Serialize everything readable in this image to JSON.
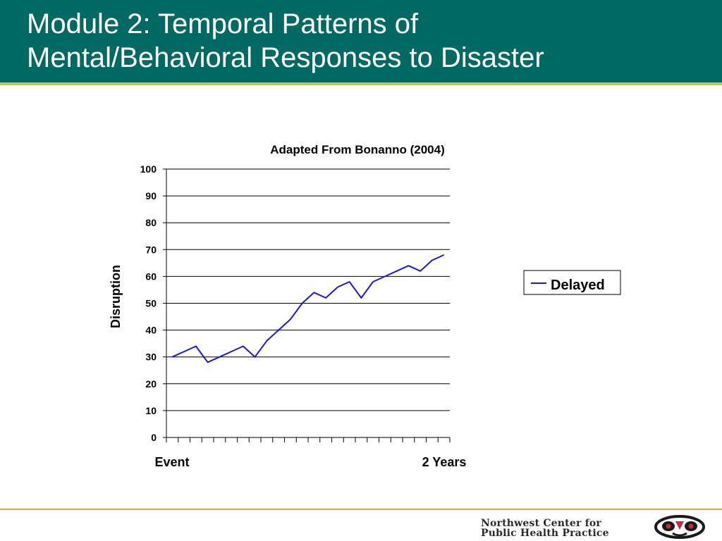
{
  "header": {
    "title_line1": "Module 2: Temporal Patterns of",
    "title_line2": "Mental/Behavioral Responses to Disaster"
  },
  "footer": {
    "logo_line1": "Northwest Center for",
    "logo_line2": "Public Health Practice"
  },
  "colors": {
    "header_bg": "#006a62",
    "header_rule": "#d7b74a",
    "footer_rule": "#e3a63a",
    "series_line": "#1a1acc"
  },
  "chart_data": {
    "type": "line",
    "title": "Adapted From Bonanno (2004)",
    "ylabel": "Disruption",
    "xlabel": "",
    "x_start_label": "Event",
    "x_end_label": "2 Years",
    "ylim": [
      0,
      100
    ],
    "yticks": [
      0,
      10,
      20,
      30,
      40,
      50,
      60,
      70,
      80,
      90,
      100
    ],
    "grid": true,
    "legend_position": "right",
    "series": [
      {
        "name": "Delayed",
        "color": "#1a1acc",
        "values": [
          30,
          32,
          34,
          28,
          30,
          32,
          34,
          30,
          36,
          40,
          44,
          50,
          54,
          52,
          56,
          58,
          52,
          58,
          60,
          62,
          64,
          62,
          66,
          68
        ]
      }
    ]
  }
}
